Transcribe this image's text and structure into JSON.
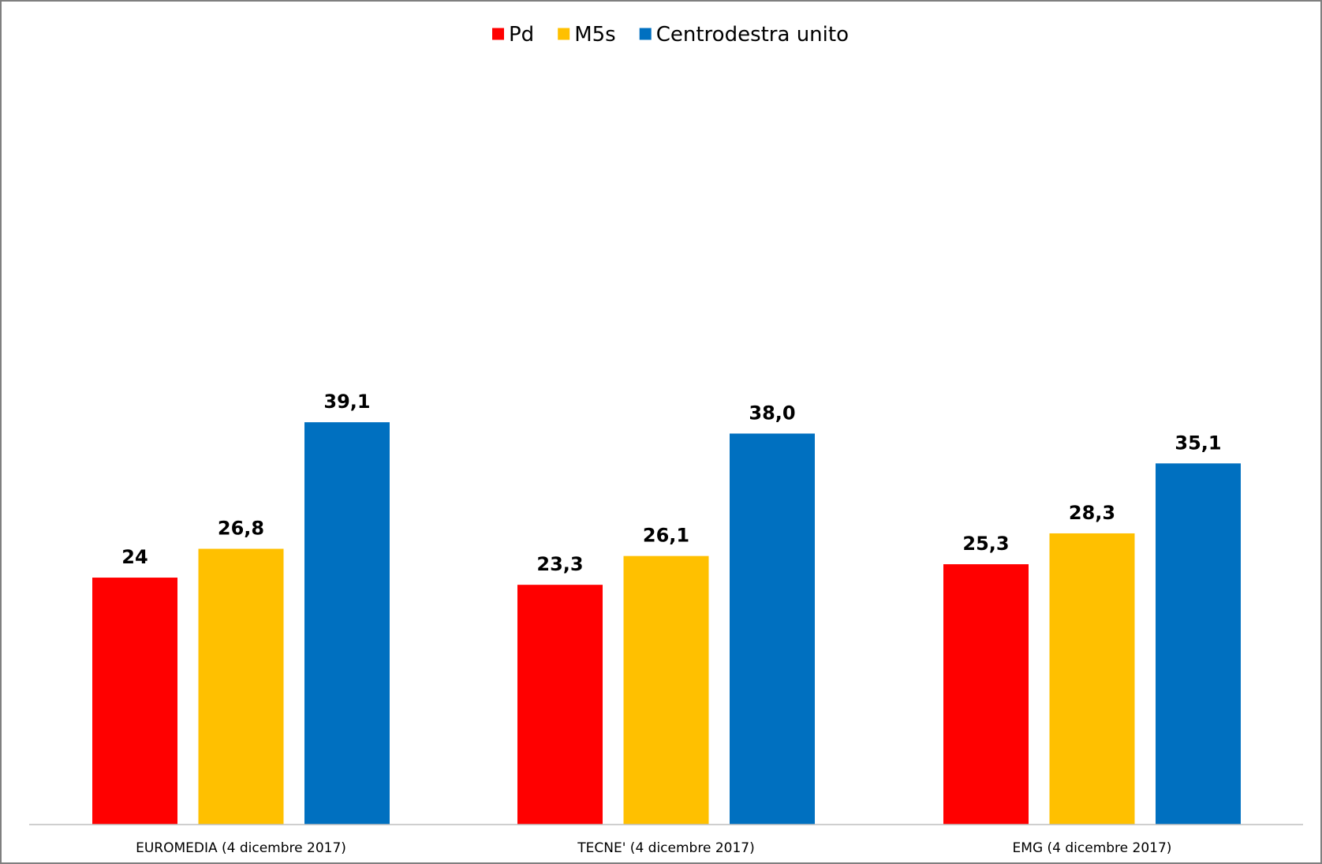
{
  "chart_data": {
    "type": "bar",
    "categories": [
      "EUROMEDIA (4 dicembre 2017)",
      "TECNE' (4 dicembre 2017)",
      "EMG (4 dicembre 2017)"
    ],
    "series": [
      {
        "name": "Pd",
        "color": "#FF0000",
        "values": [
          24,
          23.3,
          25.3
        ],
        "labels": [
          "24",
          "23,3",
          "25,3"
        ]
      },
      {
        "name": "M5s",
        "color": "#FFC000",
        "values": [
          26.8,
          26.1,
          28.3
        ],
        "labels": [
          "26,8",
          "26,1",
          "28,3"
        ]
      },
      {
        "name": "Centrodestra unito",
        "color": "#0070C0",
        "values": [
          39.1,
          38.0,
          35.1
        ],
        "labels": [
          "39,1",
          "38,0",
          "35,1"
        ]
      }
    ],
    "title": "",
    "xlabel": "",
    "ylabel": "",
    "ylim": [
      0,
      48
    ],
    "grid": false,
    "legend_position": "top-center",
    "axis_line_color": "#BFBFBF",
    "frame_color": "#7F7F7F"
  }
}
